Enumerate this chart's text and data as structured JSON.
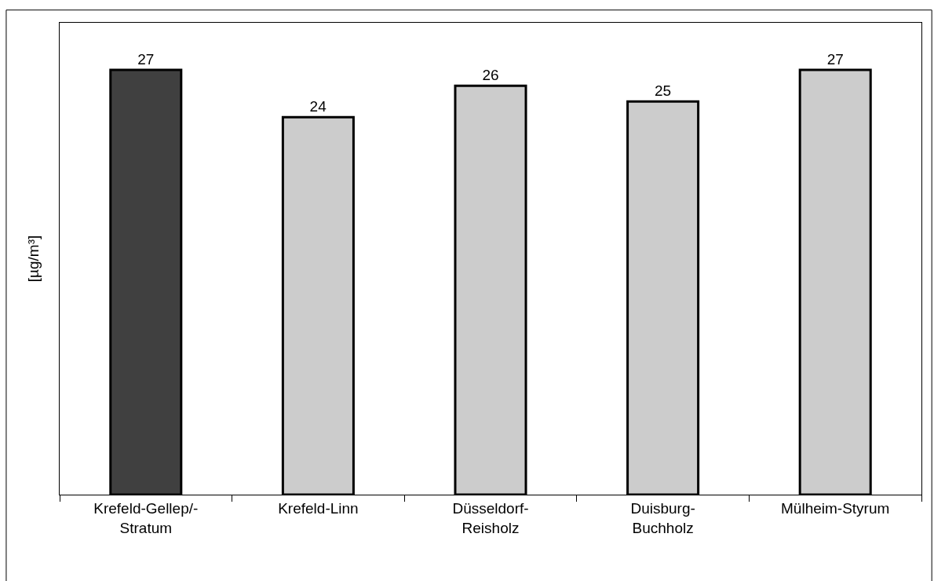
{
  "chart_data": {
    "type": "bar",
    "ylabel": "[µg/m³]",
    "categories": [
      "Krefeld-Gellep/-\nStratum",
      "Krefeld-Linn",
      "Düsseldorf-\nReisholz",
      "Duisburg-\nBuchholz",
      "Mülheim-Styrum"
    ],
    "values": [
      27,
      24,
      26,
      25,
      27
    ],
    "colors": [
      "#404040",
      "#cccccc",
      "#cccccc",
      "#cccccc",
      "#cccccc"
    ],
    "ylim": [
      0,
      30
    ],
    "data_labels": true,
    "tick_labels": "x"
  }
}
